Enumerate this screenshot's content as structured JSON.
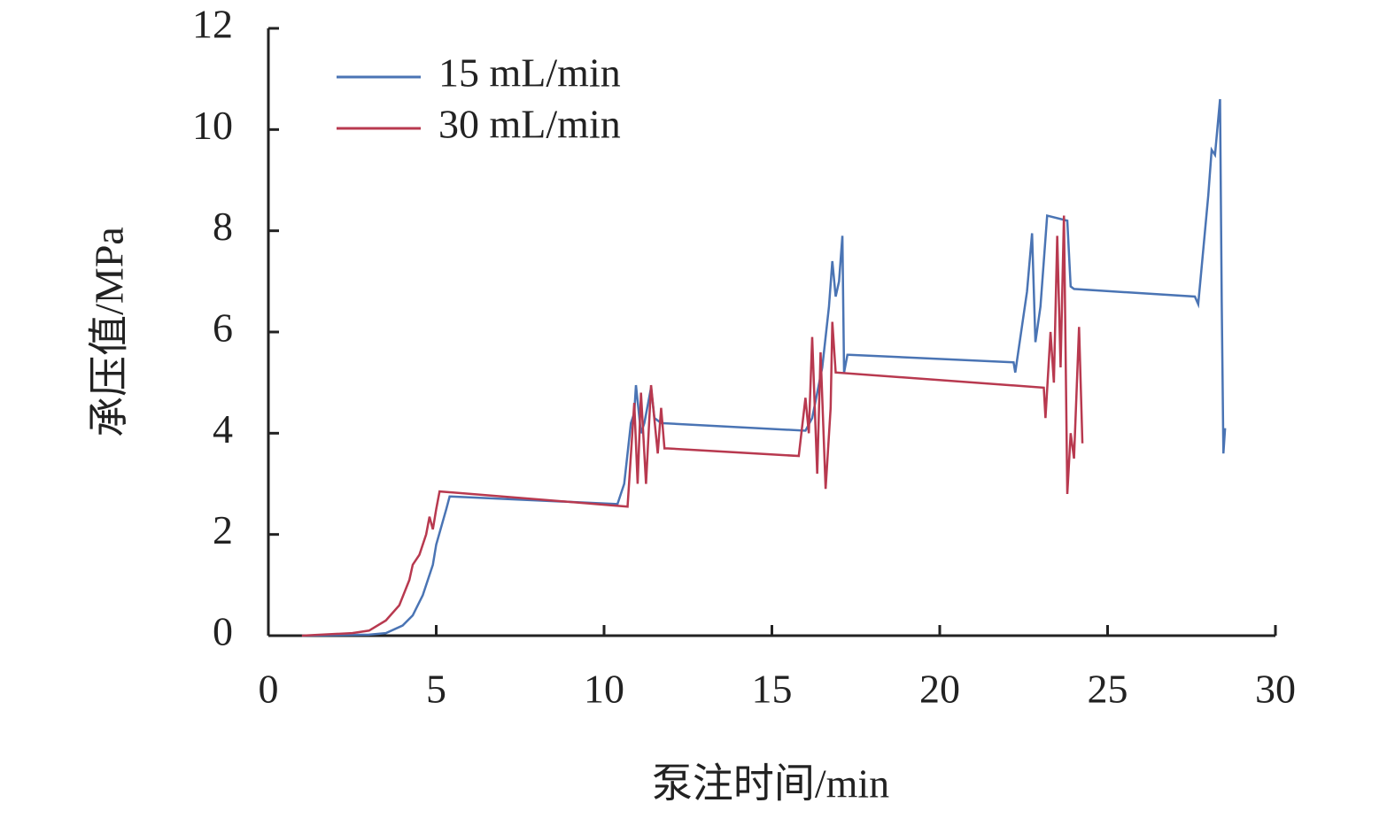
{
  "chart_data": {
    "type": "line",
    "x_label": "泵注时间/min",
    "y_label": "承压值/MPa",
    "xlim": [
      0,
      30
    ],
    "xticks": [
      0,
      5,
      10,
      15,
      20,
      25,
      30
    ],
    "ylim": [
      0,
      12
    ],
    "yticks": [
      0,
      2,
      4,
      6,
      8,
      10,
      12
    ],
    "legend": "upper left",
    "series": [
      {
        "name": "15 mL/min",
        "color": "#4a74b4",
        "x": [
          1.0,
          3.0,
          3.5,
          4.0,
          4.3,
          4.6,
          4.9,
          5.0,
          5.3,
          5.4,
          10.4,
          10.6,
          10.8,
          10.9,
          10.95,
          11.1,
          11.2,
          11.4,
          11.5,
          11.7,
          16.0,
          16.2,
          16.5,
          16.7,
          16.8,
          16.9,
          17.0,
          17.1,
          17.15,
          17.25,
          17.3,
          22.2,
          22.25,
          22.6,
          22.75,
          22.85,
          23.0,
          23.2,
          23.8,
          23.9,
          24.0,
          27.6,
          27.7,
          28.0,
          28.1,
          28.2,
          28.35,
          28.4,
          28.45,
          28.5
        ],
        "values": [
          0,
          0.02,
          0.05,
          0.2,
          0.4,
          0.8,
          1.4,
          1.8,
          2.5,
          2.75,
          2.6,
          3.0,
          4.2,
          4.4,
          4.95,
          4.0,
          4.2,
          4.9,
          4.3,
          4.2,
          4.05,
          4.3,
          5.3,
          6.5,
          7.4,
          6.7,
          7.0,
          7.9,
          5.2,
          5.55,
          5.55,
          5.4,
          5.2,
          6.8,
          7.95,
          5.8,
          6.5,
          8.3,
          8.2,
          6.9,
          6.85,
          6.7,
          6.55,
          8.7,
          9.6,
          9.5,
          10.6,
          6.6,
          3.6,
          4.1
        ]
      },
      {
        "name": "30 mL/min",
        "color": "#b8394f",
        "x": [
          1.0,
          2.5,
          3.0,
          3.5,
          3.9,
          4.2,
          4.3,
          4.5,
          4.7,
          4.8,
          4.9,
          5.0,
          5.1,
          10.7,
          10.9,
          11.0,
          11.1,
          11.25,
          11.4,
          11.6,
          11.7,
          11.8,
          11.9,
          15.8,
          16.0,
          16.1,
          16.2,
          16.35,
          16.45,
          16.6,
          16.75,
          16.8,
          16.9,
          23.1,
          23.15,
          23.3,
          23.4,
          23.5,
          23.6,
          23.7,
          23.8,
          23.9,
          24.0,
          24.15,
          24.25
        ],
        "values": [
          0,
          0.05,
          0.1,
          0.3,
          0.6,
          1.1,
          1.4,
          1.6,
          2.0,
          2.35,
          2.1,
          2.5,
          2.85,
          2.55,
          4.6,
          3.0,
          4.8,
          3.0,
          4.95,
          3.6,
          4.5,
          3.7,
          3.7,
          3.55,
          4.7,
          4.0,
          5.9,
          3.2,
          5.6,
          2.9,
          4.5,
          6.2,
          5.2,
          4.9,
          4.3,
          6.0,
          5.0,
          7.9,
          5.3,
          8.3,
          2.8,
          4.0,
          3.5,
          6.1,
          3.8
        ]
      }
    ]
  }
}
